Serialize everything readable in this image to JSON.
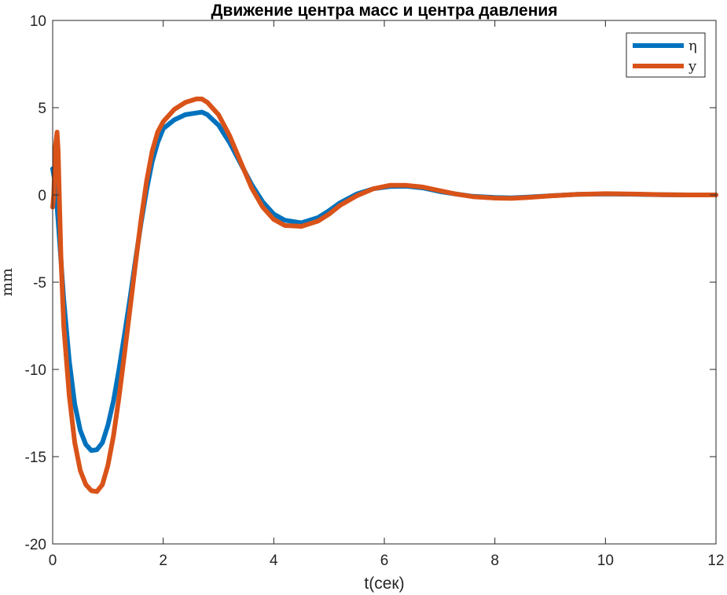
{
  "chart_data": {
    "type": "line",
    "title": "Движение центра масс и центра давления",
    "xlabel": "t(сек)",
    "ylabel": "mm",
    "xlim": [
      0,
      12
    ],
    "ylim": [
      -20,
      10
    ],
    "xticks": [
      0,
      2,
      4,
      6,
      8,
      10,
      12
    ],
    "yticks": [
      10,
      5,
      0,
      -5,
      -10,
      -15,
      -20
    ],
    "grid": false,
    "legend_position": "top-right",
    "series": [
      {
        "name": "η",
        "color": "#0072BD",
        "points": [
          [
            0,
            1.5
          ],
          [
            0.05,
            0.6
          ],
          [
            0.1,
            -1.5
          ],
          [
            0.2,
            -6.0
          ],
          [
            0.3,
            -9.5
          ],
          [
            0.4,
            -12.0
          ],
          [
            0.5,
            -13.5
          ],
          [
            0.6,
            -14.3
          ],
          [
            0.7,
            -14.65
          ],
          [
            0.8,
            -14.6
          ],
          [
            0.9,
            -14.2
          ],
          [
            1.0,
            -13.2
          ],
          [
            1.1,
            -11.8
          ],
          [
            1.2,
            -10.0
          ],
          [
            1.3,
            -8.0
          ],
          [
            1.4,
            -5.9
          ],
          [
            1.5,
            -3.7
          ],
          [
            1.6,
            -1.6
          ],
          [
            1.7,
            0.3
          ],
          [
            1.8,
            1.9
          ],
          [
            1.9,
            3.0
          ],
          [
            2.0,
            3.8
          ],
          [
            2.2,
            4.3
          ],
          [
            2.4,
            4.6
          ],
          [
            2.6,
            4.7
          ],
          [
            2.7,
            4.75
          ],
          [
            2.8,
            4.6
          ],
          [
            3.0,
            4.0
          ],
          [
            3.2,
            3.0
          ],
          [
            3.4,
            1.8
          ],
          [
            3.6,
            0.6
          ],
          [
            3.8,
            -0.4
          ],
          [
            4.0,
            -1.1
          ],
          [
            4.2,
            -1.45
          ],
          [
            4.5,
            -1.6
          ],
          [
            4.8,
            -1.3
          ],
          [
            5.0,
            -0.9
          ],
          [
            5.2,
            -0.45
          ],
          [
            5.5,
            0.05
          ],
          [
            5.8,
            0.35
          ],
          [
            6.1,
            0.48
          ],
          [
            6.4,
            0.5
          ],
          [
            6.7,
            0.4
          ],
          [
            7.0,
            0.2
          ],
          [
            7.3,
            0.05
          ],
          [
            7.6,
            -0.08
          ],
          [
            8.0,
            -0.15
          ],
          [
            8.3,
            -0.17
          ],
          [
            8.6,
            -0.12
          ],
          [
            9.0,
            -0.05
          ],
          [
            9.5,
            0.03
          ],
          [
            10.0,
            0.06
          ],
          [
            10.5,
            0.04
          ],
          [
            11.0,
            0.01
          ],
          [
            11.5,
            0.0
          ],
          [
            12.0,
            0.0
          ]
        ]
      },
      {
        "name": "y",
        "color": "#D95319",
        "points": [
          [
            0,
            -0.7
          ],
          [
            0.02,
            0.0
          ],
          [
            0.05,
            2.8
          ],
          [
            0.08,
            3.6
          ],
          [
            0.1,
            2.5
          ],
          [
            0.12,
            0.0
          ],
          [
            0.15,
            -3.5
          ],
          [
            0.2,
            -7.5
          ],
          [
            0.3,
            -11.5
          ],
          [
            0.4,
            -14.2
          ],
          [
            0.5,
            -15.8
          ],
          [
            0.6,
            -16.6
          ],
          [
            0.7,
            -16.95
          ],
          [
            0.8,
            -17.0
          ],
          [
            0.9,
            -16.6
          ],
          [
            1.0,
            -15.5
          ],
          [
            1.1,
            -13.8
          ],
          [
            1.2,
            -11.6
          ],
          [
            1.3,
            -9.1
          ],
          [
            1.4,
            -6.5
          ],
          [
            1.5,
            -3.9
          ],
          [
            1.6,
            -1.4
          ],
          [
            1.7,
            0.8
          ],
          [
            1.8,
            2.5
          ],
          [
            1.9,
            3.6
          ],
          [
            2.0,
            4.2
          ],
          [
            2.2,
            4.9
          ],
          [
            2.4,
            5.3
          ],
          [
            2.6,
            5.5
          ],
          [
            2.7,
            5.5
          ],
          [
            2.8,
            5.3
          ],
          [
            3.0,
            4.6
          ],
          [
            3.2,
            3.4
          ],
          [
            3.4,
            1.9
          ],
          [
            3.6,
            0.4
          ],
          [
            3.8,
            -0.7
          ],
          [
            4.0,
            -1.4
          ],
          [
            4.2,
            -1.75
          ],
          [
            4.5,
            -1.8
          ],
          [
            4.8,
            -1.5
          ],
          [
            5.0,
            -1.1
          ],
          [
            5.2,
            -0.6
          ],
          [
            5.5,
            -0.05
          ],
          [
            5.8,
            0.35
          ],
          [
            6.1,
            0.55
          ],
          [
            6.4,
            0.55
          ],
          [
            6.7,
            0.45
          ],
          [
            7.0,
            0.25
          ],
          [
            7.3,
            0.05
          ],
          [
            7.6,
            -0.1
          ],
          [
            8.0,
            -0.18
          ],
          [
            8.3,
            -0.2
          ],
          [
            8.6,
            -0.15
          ],
          [
            9.0,
            -0.06
          ],
          [
            9.5,
            0.03
          ],
          [
            10.0,
            0.07
          ],
          [
            10.5,
            0.05
          ],
          [
            11.0,
            0.02
          ],
          [
            11.5,
            0.0
          ],
          [
            12.0,
            0.0
          ]
        ]
      }
    ]
  }
}
